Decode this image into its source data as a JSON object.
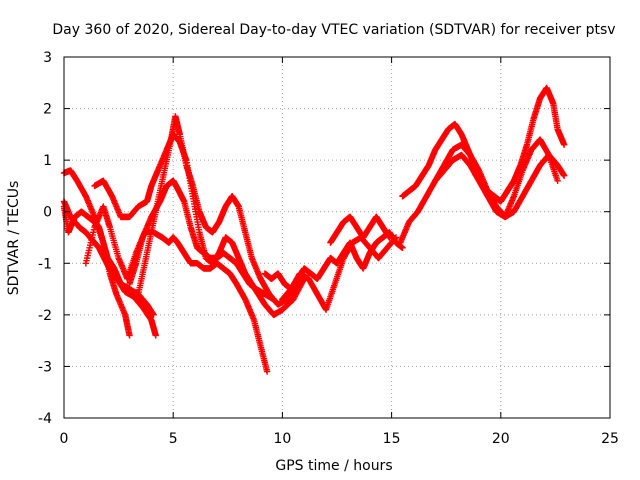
{
  "chart_data": {
    "type": "scatter",
    "title": "Day 360 of 2020, Sidereal Day-to-day VTEC variation (SDTVAR) for receiver ptsv",
    "xlabel": "GPS time / hours",
    "ylabel": "SDTVAR / TECUs",
    "xlim": [
      0,
      25
    ],
    "ylim": [
      -4,
      3
    ],
    "xticks": [
      0,
      5,
      10,
      15,
      20,
      25
    ],
    "yticks": [
      -4,
      -3,
      -2,
      -1,
      0,
      1,
      2,
      3
    ],
    "grid": true,
    "marker": "+",
    "marker_color": "#ff0000",
    "series": [
      {
        "name": "s1",
        "x": [
          0.0,
          0.3,
          0.6,
          1.0,
          1.4,
          1.8,
          2.1,
          2.4,
          2.8,
          3.0
        ],
        "y": [
          0.75,
          0.8,
          0.6,
          0.3,
          -0.1,
          -0.6,
          -1.2,
          -1.6,
          -2.0,
          -2.4
        ]
      },
      {
        "name": "s2",
        "x": [
          0.0,
          0.3,
          0.7,
          1.0,
          1.3,
          1.6,
          1.9,
          2.2,
          2.5,
          2.8,
          3.2,
          3.6,
          4.0,
          4.2
        ],
        "y": [
          0.2,
          -0.1,
          -0.3,
          -0.4,
          -0.55,
          -0.7,
          -0.95,
          -1.2,
          -1.35,
          -1.55,
          -1.65,
          -1.85,
          -2.1,
          -2.4
        ]
      },
      {
        "name": "s3",
        "x": [
          0.0,
          0.2,
          0.5,
          0.8,
          1.1,
          1.4,
          1.6,
          1.8,
          2.0,
          2.3,
          2.6,
          3.0,
          3.4,
          3.8,
          4.1
        ],
        "y": [
          0.1,
          -0.4,
          -0.1,
          0.0,
          -0.1,
          -0.2,
          -0.3,
          -0.6,
          -0.9,
          -1.1,
          -1.4,
          -1.5,
          -1.6,
          -1.8,
          -2.0
        ]
      },
      {
        "name": "s4",
        "x": [
          1.0,
          1.4,
          1.8,
          2.1,
          2.5,
          2.9,
          3.3,
          3.7,
          4.1,
          4.5,
          4.8,
          5.0,
          5.2,
          5.5,
          5.8,
          6.1,
          6.4,
          6.7,
          7.0,
          7.3,
          7.6,
          7.9,
          8.3,
          8.7,
          9.0,
          9.3
        ],
        "y": [
          -1.0,
          -0.3,
          0.1,
          -0.3,
          -0.9,
          -1.3,
          -0.8,
          -0.4,
          -0.4,
          -0.5,
          -0.6,
          -0.5,
          -0.6,
          -0.8,
          -1.0,
          -1.0,
          -1.1,
          -1.1,
          -1.0,
          -1.1,
          -1.2,
          -1.4,
          -1.7,
          -2.1,
          -2.6,
          -3.1
        ]
      },
      {
        "name": "s5",
        "x": [
          1.4,
          1.8,
          2.2,
          2.6,
          3.0,
          3.4,
          3.8,
          4.0,
          4.3,
          4.7,
          5.0,
          5.3,
          5.6,
          5.9,
          6.2,
          6.5,
          6.8,
          7.1,
          7.4,
          7.7,
          8.0,
          8.3,
          8.6,
          8.9,
          9.2,
          9.6,
          10.0,
          10.5,
          11.0
        ],
        "y": [
          0.5,
          0.6,
          0.3,
          -0.1,
          -0.1,
          0.1,
          0.2,
          0.5,
          0.8,
          1.2,
          1.5,
          1.35,
          1.0,
          0.3,
          -0.4,
          -0.9,
          -1.0,
          -0.8,
          -0.5,
          -0.6,
          -0.9,
          -1.2,
          -1.4,
          -1.6,
          -1.8,
          -2.0,
          -1.9,
          -1.7,
          -1.3
        ]
      },
      {
        "name": "s6",
        "x": [
          3.4,
          3.7,
          4.0,
          4.3,
          4.6,
          4.9,
          5.1,
          5.3,
          5.6,
          5.9,
          6.2,
          6.5,
          6.8,
          7.1,
          7.4,
          7.7,
          8.0,
          8.3,
          8.6,
          9.0,
          9.4,
          9.8,
          10.2,
          10.6,
          11.0
        ],
        "y": [
          -1.6,
          -1.0,
          -0.4,
          0.2,
          0.8,
          1.4,
          1.85,
          1.5,
          0.9,
          0.5,
          0.0,
          -0.3,
          -0.4,
          -0.2,
          0.1,
          0.3,
          0.1,
          -0.4,
          -0.9,
          -1.3,
          -1.6,
          -1.8,
          -1.7,
          -1.5,
          -1.3
        ]
      },
      {
        "name": "s7",
        "x": [
          3.0,
          3.3,
          3.6,
          4.0,
          4.4,
          4.7,
          5.0,
          5.2,
          5.5,
          5.8,
          6.1,
          6.4,
          6.7,
          7.0,
          7.3,
          7.6,
          7.9,
          8.2,
          8.5,
          8.8,
          9.2,
          9.6
        ],
        "y": [
          -1.4,
          -1.0,
          -0.5,
          -0.1,
          0.2,
          0.5,
          0.6,
          0.45,
          0.2,
          -0.3,
          -0.7,
          -0.8,
          -0.9,
          -0.9,
          -0.8,
          -0.9,
          -1.0,
          -1.2,
          -1.4,
          -1.5,
          -1.6,
          -1.7
        ]
      },
      {
        "name": "s8",
        "x": [
          9.2,
          9.5,
          9.8,
          10.1,
          10.4,
          10.7,
          11.0,
          11.3,
          11.6,
          11.9,
          12.2,
          12.5,
          12.8,
          13.1,
          13.4,
          13.7,
          14.0,
          14.3,
          14.6,
          14.9,
          15.2,
          15.5
        ],
        "y": [
          -1.2,
          -1.3,
          -1.2,
          -1.4,
          -1.5,
          -1.3,
          -1.1,
          -1.2,
          -1.3,
          -1.1,
          -0.9,
          -1.0,
          -0.8,
          -0.6,
          -0.9,
          -1.1,
          -0.8,
          -0.6,
          -0.5,
          -0.4,
          -0.6,
          -0.7
        ]
      },
      {
        "name": "s9",
        "x": [
          10.0,
          10.4,
          10.8,
          11.2,
          11.6,
          12.0,
          12.4,
          12.8,
          13.2,
          13.6,
          14.0,
          14.4,
          14.8,
          15.2
        ],
        "y": [
          -1.7,
          -1.5,
          -1.2,
          -1.3,
          -1.6,
          -1.9,
          -1.4,
          -0.9,
          -0.6,
          -0.5,
          -0.7,
          -0.9,
          -0.7,
          -0.5
        ]
      },
      {
        "name": "s10",
        "x": [
          12.2,
          12.5,
          12.8,
          13.1,
          13.4,
          13.7,
          14.0,
          14.3,
          14.6,
          14.9
        ],
        "y": [
          -0.6,
          -0.4,
          -0.2,
          -0.1,
          -0.3,
          -0.5,
          -0.3,
          -0.1,
          -0.3,
          -0.5
        ]
      },
      {
        "name": "s11",
        "x": [
          15.5,
          15.8,
          16.1,
          16.4,
          16.7,
          17.0,
          17.3,
          17.6,
          17.9,
          18.2,
          18.5,
          18.8,
          19.1,
          19.4,
          19.7,
          20.0,
          20.3,
          20.6,
          20.9,
          21.2,
          21.5,
          21.8,
          22.1,
          22.4,
          22.6,
          22.9
        ],
        "y": [
          0.3,
          0.4,
          0.5,
          0.7,
          0.9,
          1.2,
          1.4,
          1.6,
          1.7,
          1.5,
          1.2,
          0.9,
          0.6,
          0.4,
          0.3,
          0.2,
          0.4,
          0.6,
          0.9,
          1.3,
          1.8,
          2.2,
          2.4,
          2.1,
          1.6,
          1.3
        ]
      },
      {
        "name": "s12",
        "x": [
          15.4,
          15.8,
          16.2,
          16.6,
          17.0,
          17.4,
          17.8,
          18.2,
          18.6,
          19.0,
          19.4,
          19.8,
          20.2,
          20.6,
          21.0,
          21.4,
          21.8,
          22.2,
          22.6,
          22.9
        ],
        "y": [
          -0.6,
          -0.2,
          0.0,
          0.3,
          0.6,
          0.8,
          1.0,
          1.1,
          0.9,
          0.6,
          0.3,
          0.0,
          -0.1,
          0.0,
          0.3,
          0.6,
          0.9,
          1.1,
          0.9,
          0.7
        ]
      },
      {
        "name": "s13",
        "x": [
          17.0,
          17.4,
          17.8,
          18.2,
          18.6,
          19.0,
          19.4,
          19.8,
          20.2,
          20.6,
          21.0,
          21.4,
          21.8,
          22.2,
          22.6
        ],
        "y": [
          0.6,
          0.9,
          1.2,
          1.3,
          1.1,
          0.8,
          0.4,
          0.1,
          -0.1,
          0.3,
          0.8,
          1.2,
          1.4,
          1.1,
          0.6
        ]
      }
    ]
  }
}
